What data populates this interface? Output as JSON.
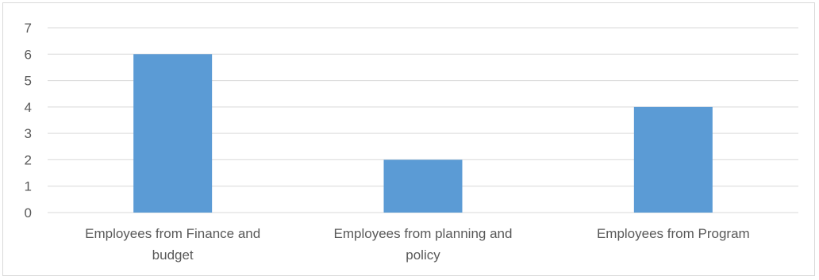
{
  "chart_data": {
    "type": "bar",
    "categories": [
      [
        "Employees from Finance and",
        "budget"
      ],
      [
        "Employees from planning and",
        "policy"
      ],
      [
        "Employees from Program"
      ]
    ],
    "values": [
      6,
      2,
      4
    ],
    "ylim": [
      0,
      7
    ],
    "yticks": [
      "0",
      "1",
      "2",
      "3",
      "4",
      "5",
      "6",
      "7"
    ],
    "grid": true,
    "bar_color": "#5b9bd5",
    "grid_color": "#d9d9d9",
    "title": "",
    "xlabel": "",
    "ylabel": ""
  }
}
